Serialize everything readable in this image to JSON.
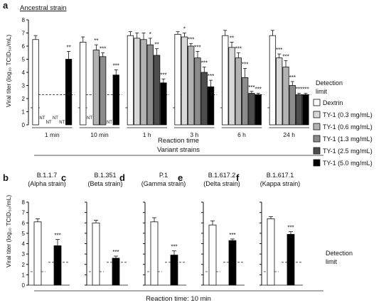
{
  "panel_a": {
    "letter": "a",
    "subtitle": "Ancestral strain",
    "ylabel": "Viral titer (log₁₀ TCID₅₀/mL)",
    "xlabel": "Reaction time",
    "detection_label": [
      "Detection",
      "limit"
    ],
    "nt_label": "NT"
  },
  "legend": [
    {
      "label": "Dextrin",
      "color": "#ffffff"
    },
    {
      "label": "TY-1 (0.3 mg/mL)",
      "color": "#d9d9d9"
    },
    {
      "label": "TY-1 (0.6 mg/mL)",
      "color": "#b3b3b3"
    },
    {
      "label": "TY-1 (1.3 mg/mL)",
      "color": "#8c8c8c"
    },
    {
      "label": "TY-1 (2.5 mg/mL)",
      "color": "#4d4d4d"
    },
    {
      "label": "TY-1 (5.0 mg/mL)",
      "color": "#000000"
    }
  ],
  "panel_b_heading": "Variant strains",
  "panel_b_xlabel": "Reaction time: 10 min",
  "panel_b_ylabel": "Viral titer (log₁₀ TCID₅₀/mL)",
  "panel_b_detection_label": [
    "Detection",
    "limit"
  ],
  "chart_data": [
    {
      "type": "bar",
      "panel": "a",
      "categories": [
        "1 min",
        "10 min",
        "1 h",
        "3 h",
        "6 h",
        "24 h"
      ],
      "ylim": [
        0,
        8
      ],
      "yticks": [
        0,
        1,
        2,
        3,
        4,
        5,
        6,
        7,
        8
      ],
      "detection_limit": {
        "dextrin": 1.3,
        "treated": 2.3
      },
      "series": [
        {
          "name": "Dextrin",
          "values": [
            6.5,
            6.3,
            6.8,
            6.9,
            6.8,
            6.8
          ],
          "errors": [
            0.3,
            0.4,
            0.3,
            0.2,
            0.4,
            0.4
          ],
          "sig": [
            "",
            "",
            "",
            "",
            "",
            ""
          ]
        },
        {
          "name": "TY-1 (0.3 mg/mL)",
          "values": [
            null,
            null,
            6.6,
            6.7,
            5.9,
            5.1
          ],
          "errors": [
            0,
            0,
            0.4,
            0.3,
            0.4,
            0.3
          ],
          "sig": [
            "",
            "",
            "",
            "*",
            "**",
            "***"
          ]
        },
        {
          "name": "TY-1 (0.6 mg/mL)",
          "values": [
            null,
            5.7,
            6.5,
            6.0,
            5.1,
            4.4
          ],
          "errors": [
            0,
            0.4,
            0.5,
            0.2,
            0.4,
            0.5
          ],
          "sig": [
            "",
            "**",
            "",
            "***",
            "***",
            "***"
          ]
        },
        {
          "name": "TY-1 (1.3 mg/mL)",
          "values": [
            null,
            5.2,
            6.1,
            5.1,
            3.6,
            3.0
          ],
          "errors": [
            0,
            0.3,
            0.5,
            0.5,
            0.7,
            0.3
          ],
          "sig": [
            "",
            "***",
            "*",
            "***",
            "***",
            "***"
          ]
        },
        {
          "name": "TY-1 (2.5 mg/mL)",
          "values": [
            null,
            null,
            5.3,
            4.0,
            2.4,
            2.3
          ],
          "errors": [
            0,
            0,
            0.5,
            0.4,
            0.15,
            0.1
          ],
          "sig": [
            "",
            "",
            "**",
            "***",
            "***",
            "***"
          ]
        },
        {
          "name": "TY-1 (5.0 mg/mL)",
          "values": [
            5.0,
            3.8,
            3.2,
            2.9,
            2.3,
            2.3
          ],
          "errors": [
            0.6,
            0.4,
            0.3,
            0.5,
            0.1,
            0.1
          ],
          "sig": [
            "**",
            "***",
            "***",
            "***",
            "***",
            "***"
          ]
        }
      ],
      "not_tested": [
        {
          "category": "1 min",
          "series": [
            "TY-1 (0.3 mg/mL)",
            "TY-1 (0.6 mg/mL)",
            "TY-1 (1.3 mg/mL)",
            "TY-1 (2.5 mg/mL)"
          ]
        },
        {
          "category": "10 min",
          "series": [
            "TY-1 (0.3 mg/mL)"
          ]
        },
        {
          "category": "10 min",
          "series": [
            "TY-1 (2.5 mg/mL)"
          ]
        }
      ]
    },
    {
      "type": "bar",
      "panel": "b",
      "title": "B.1.1.7",
      "subtitle": "(Alpha strain)",
      "categories": [
        "Dextrin",
        "TY-1 (5.0 mg/mL)"
      ],
      "values": [
        6.1,
        3.8
      ],
      "errors": [
        0.3,
        0.6
      ],
      "sig": [
        "",
        "***"
      ],
      "ylim": [
        0,
        8
      ]
    },
    {
      "type": "bar",
      "panel": "c",
      "title": "B.1.351",
      "subtitle": "(Beta strain)",
      "categories": [
        "Dextrin",
        "TY-1 (5.0 mg/mL)"
      ],
      "values": [
        6.0,
        2.6
      ],
      "errors": [
        0.25,
        0.2
      ],
      "sig": [
        "",
        "***"
      ],
      "ylim": [
        0,
        8
      ]
    },
    {
      "type": "bar",
      "panel": "d",
      "title": "P.1",
      "subtitle": "(Gamma strain)",
      "categories": [
        "Dextrin",
        "TY-1 (5.0 mg/mL)"
      ],
      "values": [
        6.1,
        2.9
      ],
      "errors": [
        0.4,
        0.4
      ],
      "sig": [
        "",
        "***"
      ],
      "ylim": [
        0,
        8
      ]
    },
    {
      "type": "bar",
      "panel": "e",
      "title": "B.1.617.2",
      "subtitle": "(Delta strain)",
      "categories": [
        "Dextrin",
        "TY-1 (5.0 mg/mL)"
      ],
      "values": [
        5.8,
        4.3
      ],
      "errors": [
        0.4,
        0.15
      ],
      "sig": [
        "",
        "***"
      ],
      "ylim": [
        0,
        8
      ]
    },
    {
      "type": "bar",
      "panel": "f",
      "title": "B.1.617.1",
      "subtitle": "(Kappa strain)",
      "categories": [
        "Dextrin",
        "TY-1 (5.0 mg/mL)"
      ],
      "values": [
        6.4,
        4.9
      ],
      "errors": [
        0.2,
        0.25
      ],
      "sig": [
        "",
        "***"
      ],
      "ylim": [
        0,
        8
      ]
    }
  ]
}
